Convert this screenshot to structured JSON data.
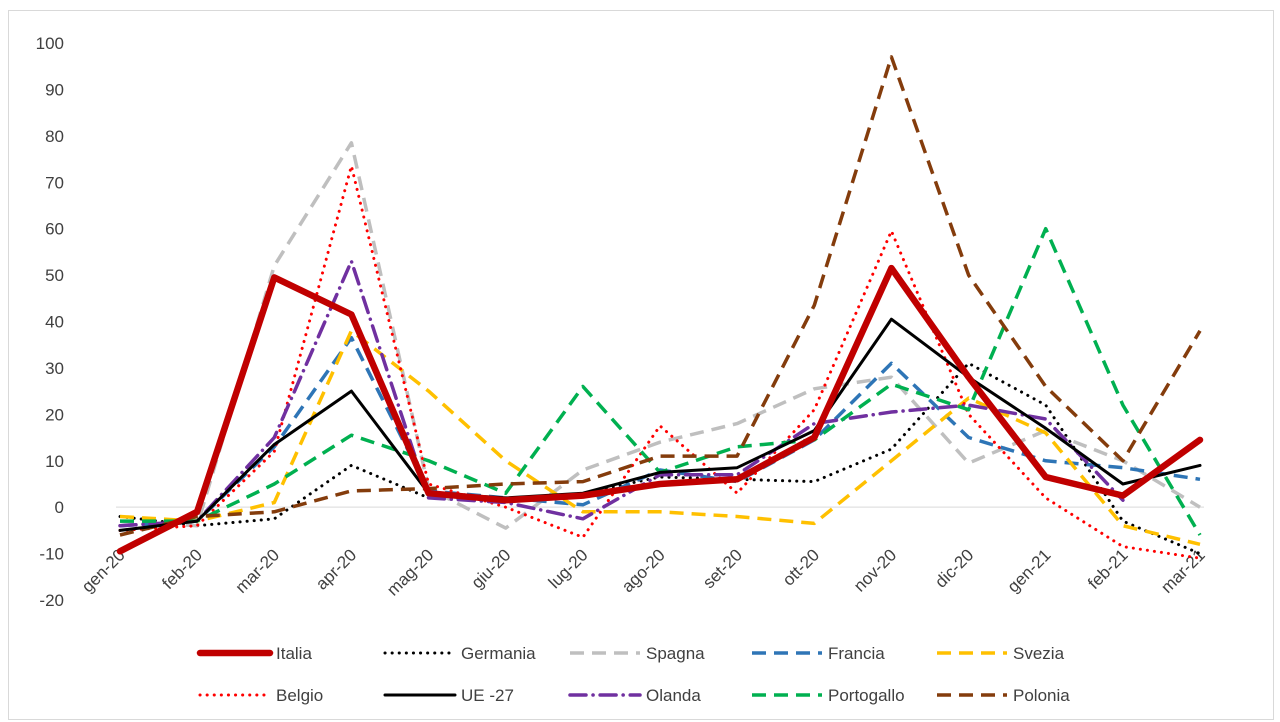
{
  "chart_data": {
    "type": "line",
    "categories": [
      "gen-20",
      "feb-20",
      "mar-20",
      "apr-20",
      "mag-20",
      "giu-20",
      "lug-20",
      "ago-20",
      "set-20",
      "ott-20",
      "nov-20",
      "dic-20",
      "gen-21",
      "feb-21",
      "mar-21"
    ],
    "ylim": [
      -20,
      100
    ],
    "yticks": [
      -20,
      -10,
      0,
      10,
      20,
      30,
      40,
      50,
      60,
      70,
      80,
      90,
      100
    ],
    "grid": false,
    "legend_position": "bottom",
    "series": [
      {
        "name": "Italia",
        "color": "#c00000",
        "style": "solid-thick",
        "values": [
          -9.5,
          -1,
          49.5,
          41.5,
          3,
          1.5,
          2.5,
          5,
          6,
          15,
          51.5,
          28,
          6.5,
          2.5,
          14.5
        ]
      },
      {
        "name": "Germania",
        "color": "#000000",
        "style": "dotted",
        "values": [
          -2,
          -4,
          -2.5,
          9,
          2,
          1.5,
          3,
          6.5,
          6,
          5.5,
          12.5,
          31,
          22,
          -3,
          -10
        ]
      },
      {
        "name": "Spagna",
        "color": "#bfbfbf",
        "style": "dashed",
        "values": [
          -3,
          -4,
          52,
          78.5,
          4,
          -4.5,
          8,
          14,
          18,
          25.5,
          28,
          9.5,
          16.5,
          10,
          0
        ]
      },
      {
        "name": "Francia",
        "color": "#2e75b6",
        "style": "dashed",
        "values": [
          -4,
          -3,
          13,
          36.5,
          3.5,
          2,
          0.5,
          8,
          5.5,
          14.5,
          31,
          15,
          10,
          8.5,
          6
        ]
      },
      {
        "name": "Svezia",
        "color": "#ffc000",
        "style": "dashed",
        "values": [
          -2,
          -3,
          1,
          38,
          25,
          10,
          -1,
          -1,
          -2,
          -3.5,
          10,
          23.5,
          16,
          -4,
          -8
        ]
      },
      {
        "name": "Belgio",
        "color": "#ff0000",
        "style": "dotted",
        "values": [
          -5,
          -4,
          12,
          73.5,
          5,
          0,
          -6.5,
          17.5,
          3,
          21,
          59.5,
          20,
          2,
          -8.5,
          -11
        ]
      },
      {
        "name": "UE -27",
        "color": "#000000",
        "style": "solid",
        "values": [
          -5,
          -3,
          13.5,
          25,
          3,
          2,
          3,
          7.5,
          8.5,
          16.5,
          40.5,
          28,
          17,
          5,
          9
        ]
      },
      {
        "name": "Olanda",
        "color": "#7030a0",
        "style": "dashdot",
        "values": [
          -4,
          -3,
          15,
          53,
          2,
          1,
          -2.5,
          7,
          7,
          18,
          20.5,
          22,
          19,
          1.5,
          null
        ]
      },
      {
        "name": "Portogallo",
        "color": "#00b050",
        "style": "dashed",
        "values": [
          -3,
          -3,
          5,
          15.5,
          10,
          3,
          26,
          7.5,
          13,
          14.5,
          26.5,
          21,
          60,
          22,
          -6
        ]
      },
      {
        "name": "Polonia",
        "color": "#843c0c",
        "style": "dashed",
        "values": [
          -6,
          -2,
          -1,
          3.5,
          4,
          5,
          5.5,
          11,
          11,
          43.5,
          97,
          50,
          26,
          10,
          38
        ]
      }
    ]
  }
}
